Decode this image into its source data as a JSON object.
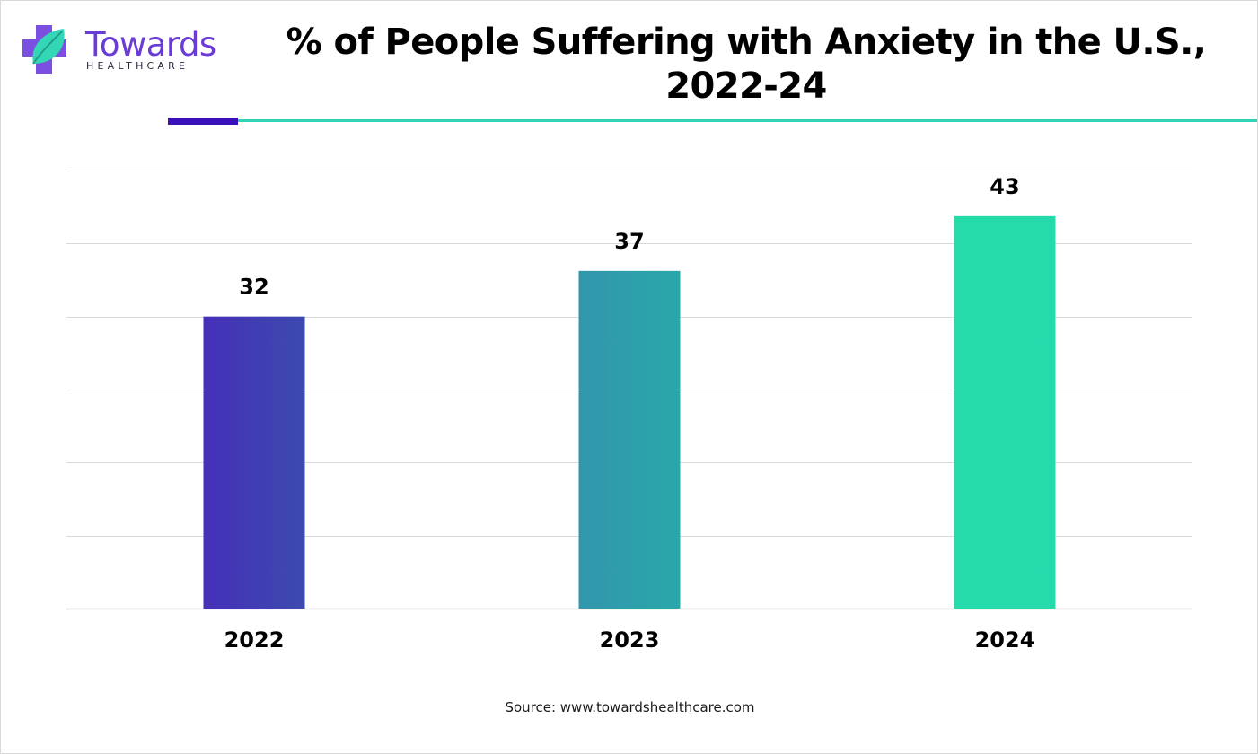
{
  "header": {
    "brand_name": "Towards",
    "brand_subtitle": "HEALTHCARE"
  },
  "colors": {
    "brand_purple": "#6a3bd6",
    "accent_bar": "#3a10b8",
    "accent_line": "#2fd4b4",
    "bar_2022": "#4233b5",
    "bar_2023": "#2f9eab",
    "bar_2024": "#26dbaa",
    "gridline": "#d9d9d9"
  },
  "chart_data": {
    "type": "bar",
    "title": "% of People Suffering with Anxiety in the U.S., 2022-24",
    "categories": [
      "2022",
      "2023",
      "2024"
    ],
    "values": [
      32,
      37,
      43
    ],
    "value_labels": [
      "32",
      "37",
      "43"
    ],
    "xlabel": "",
    "ylabel": "",
    "ylim": [
      0,
      48
    ],
    "grid": true,
    "legend": "none"
  },
  "footer": {
    "source": "Source: www.towardshealthcare.com"
  }
}
